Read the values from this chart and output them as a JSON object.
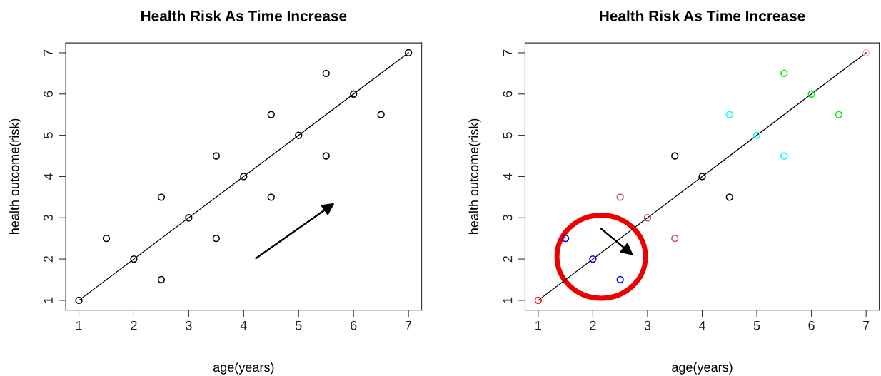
{
  "chart_data": [
    {
      "type": "scatter",
      "title": "Health Risk As Time Increase",
      "xlabel": "age(years)",
      "ylabel": "health outcome(risk)",
      "xlim": [
        0.76,
        7.24
      ],
      "ylim": [
        0.76,
        7.24
      ],
      "xticks": [
        1,
        2,
        3,
        4,
        5,
        6,
        7
      ],
      "yticks": [
        1,
        2,
        3,
        4,
        5,
        6,
        7
      ],
      "grid": false,
      "legend": false,
      "series": [
        {
          "marker": "circle",
          "color": "#000000",
          "x": [
            1,
            1.5,
            2,
            2.5,
            2.5,
            3,
            3.5,
            3.5,
            4,
            4.5,
            4.5,
            5,
            5.5,
            5.5,
            6,
            6.5,
            7
          ],
          "values": [
            1,
            2.5,
            2,
            3.5,
            1.5,
            3,
            4.5,
            2.5,
            4,
            5.5,
            3.5,
            5,
            6.5,
            4.5,
            6,
            5.5,
            7
          ]
        },
        {
          "type": "line",
          "color": "#000000",
          "x": [
            1,
            7
          ],
          "values": [
            1,
            7
          ]
        }
      ]
    },
    {
      "type": "scatter",
      "title": "Health Risk As Time Increase",
      "xlabel": "age(years)",
      "ylabel": "health outcome(risk)",
      "xlim": [
        0.76,
        7.24
      ],
      "ylim": [
        0.76,
        7.24
      ],
      "xticks": [
        1,
        2,
        3,
        4,
        5,
        6,
        7
      ],
      "yticks": [
        1,
        2,
        3,
        4,
        5,
        6,
        7
      ],
      "grid": false,
      "legend": false,
      "series": [
        {
          "marker": "circle",
          "x": [
            1,
            1.5,
            2,
            2.5,
            2.5,
            3,
            3.5,
            3.5,
            4,
            4.5,
            4.5,
            5,
            5.5,
            5.5,
            6,
            6.5,
            7
          ],
          "values": [
            1,
            2.5,
            2,
            3.5,
            1.5,
            3,
            4.5,
            2.5,
            4,
            5.5,
            3.5,
            5,
            6.5,
            4.5,
            6,
            5.5,
            7
          ],
          "colors": [
            "#ff0000",
            "#0000ff",
            "#0000ff",
            "#b85c5c",
            "#0000ff",
            "#b85c5c",
            "#000000",
            "#b85c5c",
            "#000000",
            "#00ffff",
            "#000000",
            "#00ffff",
            "#00ee00",
            "#00ffff",
            "#00ee00",
            "#00ee00",
            "#ffb6c1"
          ]
        },
        {
          "type": "line",
          "color": "#000000",
          "x": [
            1,
            7
          ],
          "values": [
            1,
            7
          ]
        }
      ]
    }
  ]
}
